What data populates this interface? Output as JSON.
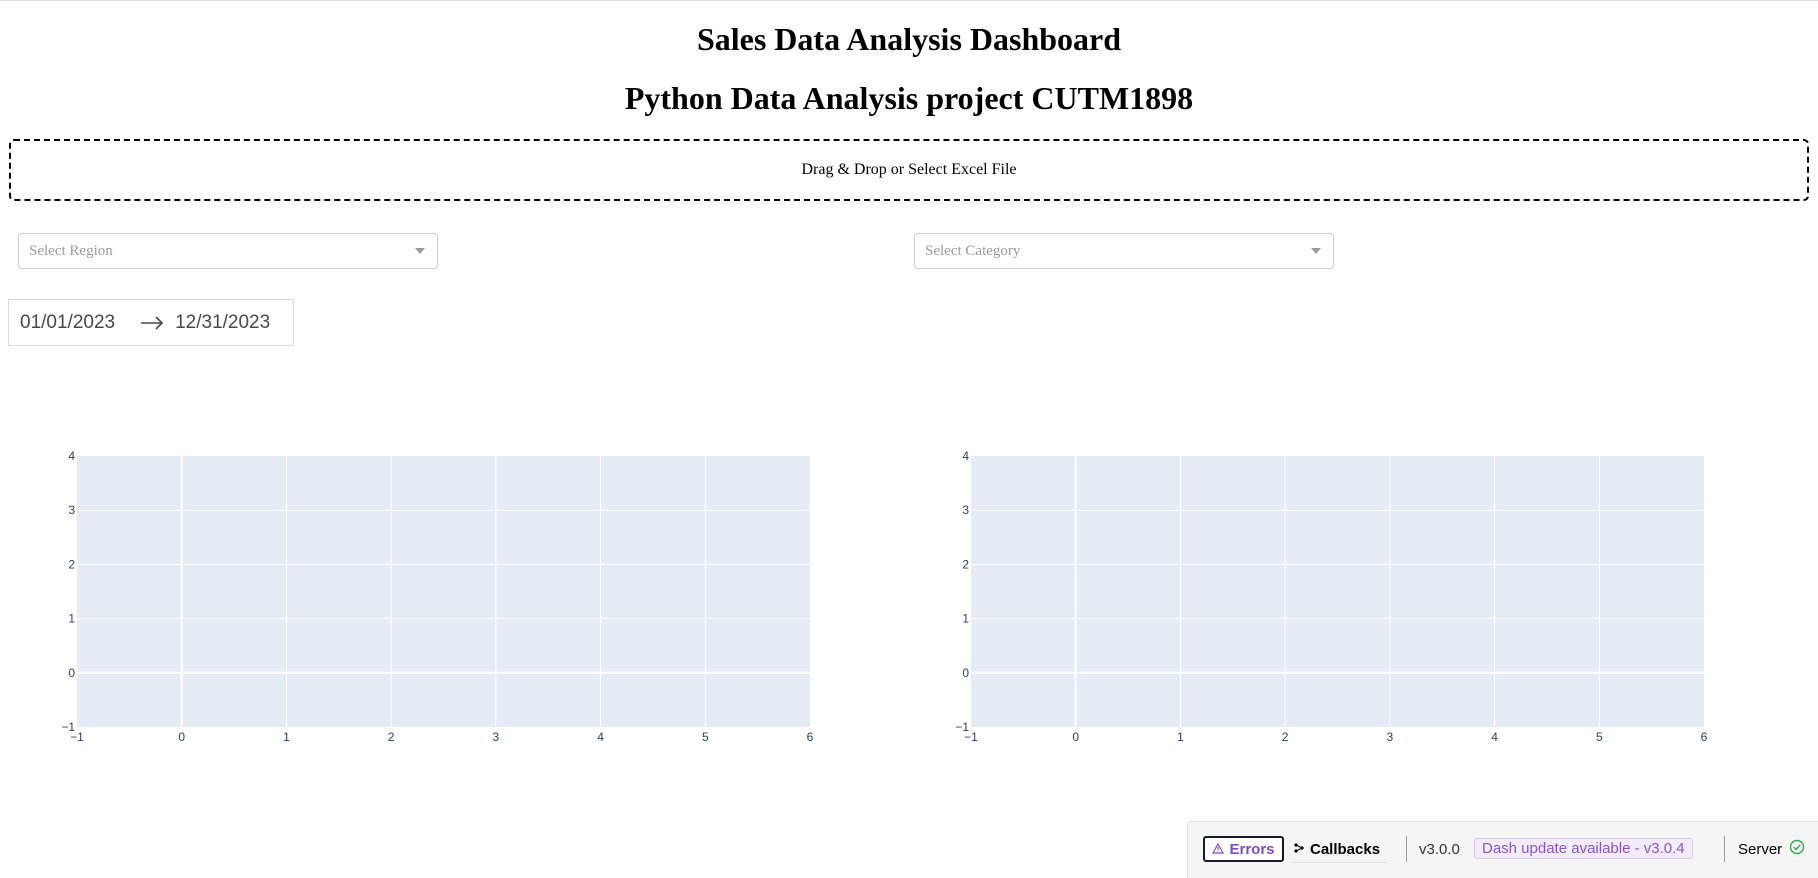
{
  "header": {
    "title": "Sales Data Analysis Dashboard",
    "subtitle": "Python Data Analysis project CUTM1898"
  },
  "upload": {
    "label": "Drag & Drop or Select Excel File"
  },
  "filters": {
    "region_placeholder": "Select Region",
    "category_placeholder": "Select Category",
    "date_start": "01/01/2023",
    "date_end": "12/31/2023"
  },
  "chart_data": [
    {
      "type": "line",
      "title": "",
      "xlabel": "",
      "ylabel": "",
      "xlim": [
        -1,
        6
      ],
      "ylim": [
        -1,
        4
      ],
      "x_ticks": [
        "−1",
        "0",
        "1",
        "2",
        "3",
        "4",
        "5",
        "6"
      ],
      "y_ticks": [
        "−1",
        "0",
        "1",
        "2",
        "3",
        "4"
      ],
      "series": [],
      "grid": true,
      "plot_bgcolor": "#e5ecf6"
    },
    {
      "type": "line",
      "title": "",
      "xlabel": "",
      "ylabel": "",
      "xlim": [
        -1,
        6
      ],
      "ylim": [
        -1,
        4
      ],
      "x_ticks": [
        "−1",
        "0",
        "1",
        "2",
        "3",
        "4",
        "5",
        "6"
      ],
      "y_ticks": [
        "−1",
        "0",
        "1",
        "2",
        "3",
        "4"
      ],
      "series": [],
      "grid": true,
      "plot_bgcolor": "#e5ecf6"
    }
  ],
  "devtools": {
    "errors_label": "Errors",
    "callbacks_label": "Callbacks",
    "version": "v3.0.0",
    "update_label": "Dash update available - v3.0.4",
    "server_label": "Server",
    "errors_icon": "warning-icon",
    "callbacks_icon": "callback-graph-icon",
    "server_icon": "check-circle-icon",
    "accent_color": "#7f4bc4"
  }
}
